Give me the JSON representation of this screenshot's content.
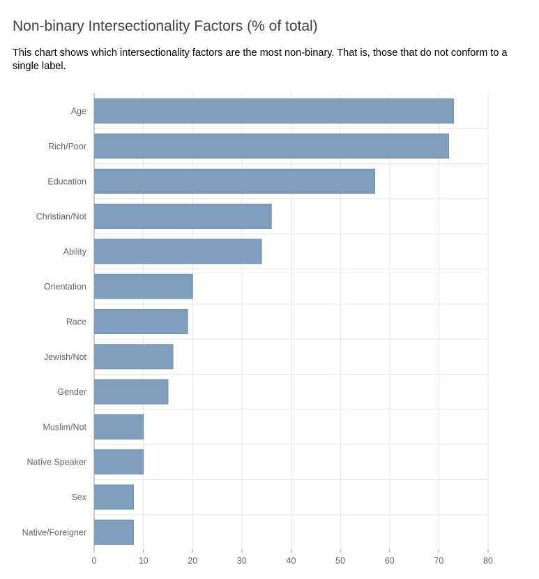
{
  "header": {
    "title": "Non-binary Intersectionality Factors (% of total)",
    "subtitle": "This chart shows which intersectionality factors are the most non-binary. That is, those that do not conform to a single label."
  },
  "chart_data": {
    "type": "bar",
    "orientation": "horizontal",
    "title": "Non-binary Intersectionality Factors (% of total)",
    "categories": [
      "Age",
      "Rich/Poor",
      "Education",
      "Christian/Not",
      "Ability",
      "Orientation",
      "Race",
      "Jewish/Not",
      "Gender",
      "Muslim/Not",
      "Native Speaker",
      "Sex",
      "Native/Foreigner"
    ],
    "values": [
      73,
      72,
      57,
      36,
      34,
      20,
      19,
      16,
      15,
      10,
      10,
      8,
      8
    ],
    "xlim": [
      0,
      80
    ],
    "xticks": [
      0,
      10,
      20,
      30,
      40,
      50,
      60,
      70,
      80
    ],
    "grid": true,
    "legend": "none",
    "colors": {
      "bar": "#7f9fbf",
      "bar_stroke": "#6f8fae",
      "grid": "#e6e6e6",
      "axis": "#999999",
      "label": "#666666"
    }
  }
}
